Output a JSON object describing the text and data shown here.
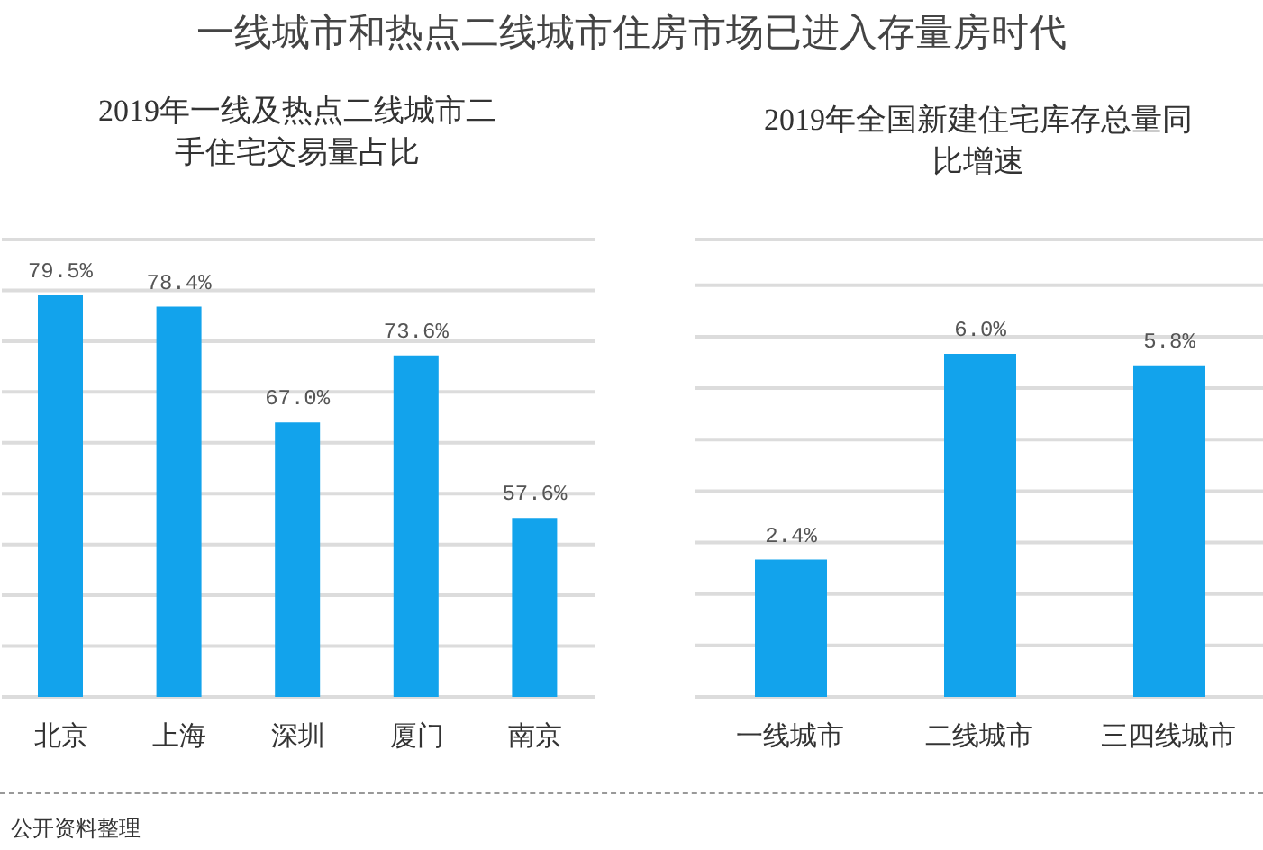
{
  "chart_data": [
    {
      "type": "bar",
      "title": "一线城市和热点二线城市住房市场已进入存量房时代",
      "subtitle": "2019年一线及热点二线城市二手住宅交易量占比",
      "categories": [
        "北京",
        "上海",
        "深圳",
        "厦门",
        "南京"
      ],
      "values": [
        79.5,
        78.4,
        67.0,
        73.6,
        57.6
      ],
      "value_labels": [
        "79.5%",
        "78.4%",
        "67.0%",
        "73.6%",
        "57.6%"
      ],
      "color": "#12a3ec",
      "ylim": [
        40,
        85
      ],
      "tick_labels": "x",
      "grid": "y",
      "annotations": [
        "公开资料整理"
      ]
    },
    {
      "type": "bar",
      "title": "2019年全国新建住宅库存总量同比增速",
      "categories": [
        "一线城市",
        "二线城市",
        "三四线城市"
      ],
      "values": [
        2.4,
        6.0,
        5.8
      ],
      "value_labels": [
        "2.4%",
        "6.0%",
        "5.8%"
      ],
      "color": "#12a3ec",
      "ylim": [
        0,
        8
      ],
      "tick_labels": "x",
      "grid": "y"
    }
  ]
}
